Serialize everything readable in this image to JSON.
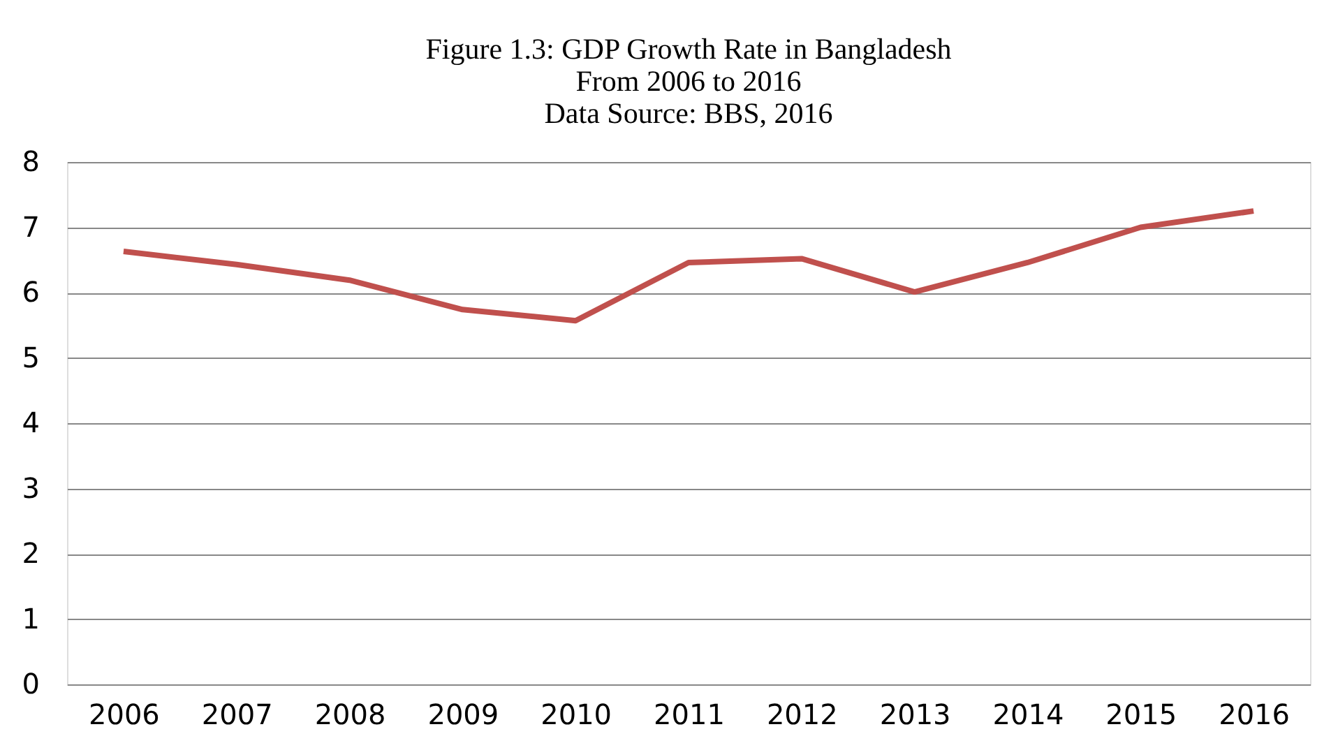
{
  "chart_data": {
    "type": "line",
    "title": "Figure 1.3: GDP Growth Rate in Bangladesh",
    "subtitle": "From 2006 to 2016",
    "annotations": [
      "Data Source: BBS, 2016"
    ],
    "categories": [
      "2006",
      "2007",
      "2008",
      "2009",
      "2010",
      "2011",
      "2012",
      "2013",
      "2014",
      "2015",
      "2016"
    ],
    "series": [
      {
        "color": "#c0504d",
        "values": [
          6.63,
          6.43,
          6.19,
          5.74,
          5.57,
          6.46,
          6.52,
          6.01,
          6.46,
          7.0,
          7.25
        ]
      }
    ],
    "ylim": [
      0,
      8
    ],
    "yticks": [
      0,
      1,
      2,
      3,
      4,
      5,
      6,
      7,
      8
    ],
    "grid": "y",
    "legend": false,
    "marker": "none",
    "line_style": "solid"
  }
}
